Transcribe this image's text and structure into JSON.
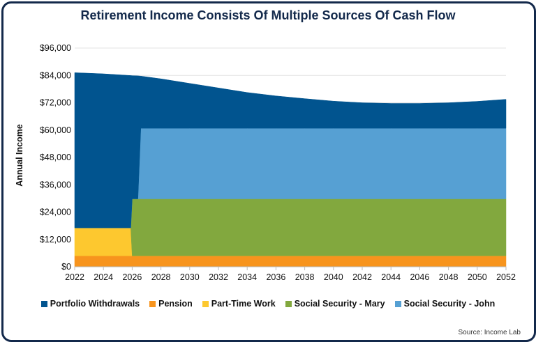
{
  "chart_data": {
    "type": "area",
    "stacked": true,
    "title": "Retirement Income Consists Of Multiple Sources Of Cash Flow",
    "xlabel": "",
    "ylabel": "Annual Income",
    "xlim": [
      2022,
      2052
    ],
    "ylim": [
      0,
      96000
    ],
    "x_ticks": [
      "2022",
      "2024",
      "2026",
      "2028",
      "2030",
      "2032",
      "2034",
      "2036",
      "2038",
      "2040",
      "2042",
      "2044",
      "2046",
      "2048",
      "2050",
      "2052"
    ],
    "y_ticks": [
      "$0",
      "$12,000",
      "$24,000",
      "$36,000",
      "$48,000",
      "$60,000",
      "$72,000",
      "$84,000",
      "$96,000"
    ],
    "y_tick_values": [
      0,
      12000,
      24000,
      36000,
      48000,
      60000,
      72000,
      84000,
      96000
    ],
    "grid": "horizontal",
    "legend_position": "bottom",
    "x": [
      2022,
      2024,
      2025.9,
      2026,
      2026.4,
      2026.6,
      2028,
      2030,
      2032,
      2034,
      2036,
      2038,
      2040,
      2042,
      2044,
      2046,
      2048,
      2050,
      2052
    ],
    "series": [
      {
        "name": "Pension",
        "color": "#f7941d",
        "values": [
          4800,
          4800,
          4800,
          4800,
          4800,
          4800,
          4800,
          4800,
          4800,
          4800,
          4800,
          4800,
          4800,
          4800,
          4800,
          4800,
          4800,
          4800,
          4800
        ]
      },
      {
        "name": "Part-Time Work",
        "color": "#fdc82f",
        "values": [
          12300,
          12300,
          12300,
          0,
          0,
          0,
          0,
          0,
          0,
          0,
          0,
          0,
          0,
          0,
          0,
          0,
          0,
          0,
          0
        ]
      },
      {
        "name": "Social Security - Mary",
        "color": "#82a83e",
        "values": [
          0,
          0,
          0,
          25000,
          25000,
          25000,
          25000,
          25000,
          25000,
          25000,
          25000,
          25000,
          25000,
          25000,
          25000,
          25000,
          25000,
          25000,
          25000
        ]
      },
      {
        "name": "Social Security - John",
        "color": "#56a0d3",
        "values": [
          0,
          0,
          0,
          0,
          0,
          31000,
          31000,
          31000,
          31000,
          31000,
          31000,
          31000,
          31000,
          31000,
          31000,
          31000,
          31000,
          31000,
          31000
        ]
      },
      {
        "name": "Portfolio Withdrawals",
        "color": "#01548f",
        "values": [
          68100,
          67600,
          66850,
          54100,
          54000,
          22900,
          21700,
          19700,
          17700,
          15700,
          14200,
          13000,
          11900,
          11200,
          10900,
          10900,
          11200,
          11800,
          12700
        ]
      }
    ],
    "legend_order": [
      "Portfolio Withdrawals",
      "Pension",
      "Part-Time Work",
      "Social Security - Mary",
      "Social Security - John"
    ],
    "source": "Source: Income Lab"
  }
}
